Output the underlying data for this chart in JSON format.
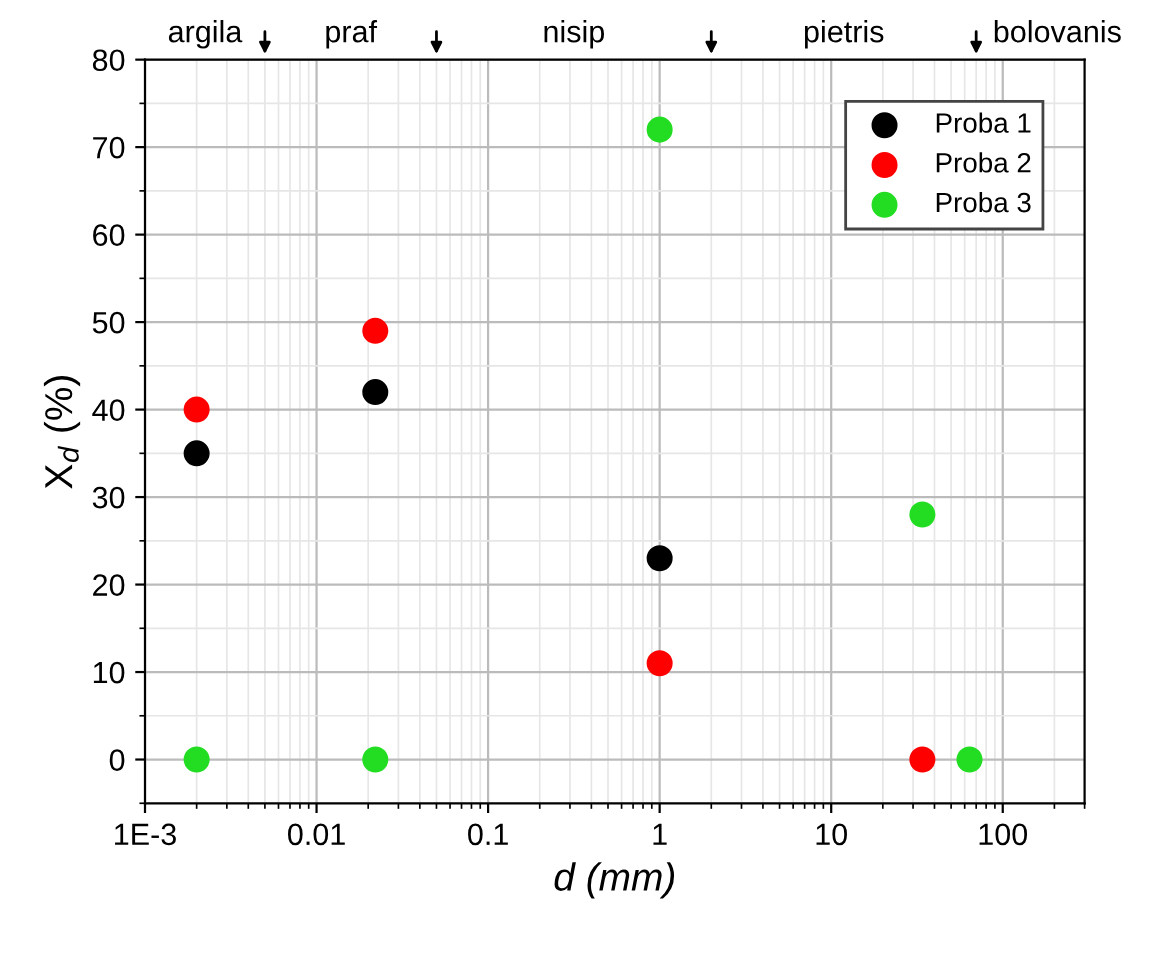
{
  "chart_data": {
    "type": "scatter",
    "xlabel": "d (mm)",
    "ylabel": "X$_{d}$ (%)",
    "log": "x",
    "xlim": [
      0.001,
      300
    ],
    "ylim": [
      -5,
      80
    ],
    "xticks": [
      {
        "value": 0.001,
        "label": "1E-3"
      },
      0.01,
      0.1,
      1,
      10,
      100
    ],
    "yticks": [
      0,
      10,
      20,
      30,
      40,
      50,
      60,
      70,
      80
    ],
    "ref_lines": [
      {
        "axis": "x",
        "value": 0.005
      },
      {
        "axis": "x",
        "value": 0.05
      },
      {
        "axis": "x",
        "value": 2
      },
      {
        "axis": "x",
        "value": 70
      }
    ],
    "annotations": [
      "argila",
      "praf",
      "nisip",
      "pietris",
      "bolovanis"
    ],
    "grid": true,
    "legend": "top right",
    "marker": "circle",
    "series": [
      {
        "name": "Proba 1",
        "color": "#000000",
        "x": [
          0.002,
          0.022,
          1
        ],
        "values": [
          35,
          42,
          23
        ]
      },
      {
        "name": "Proba 2",
        "color": "#ff0000",
        "x": [
          0.002,
          0.022,
          1,
          34
        ],
        "values": [
          40,
          49,
          11,
          0
        ]
      },
      {
        "name": "Proba 3",
        "color": "#22dd22",
        "x": [
          0.002,
          0.022,
          1,
          34,
          64
        ],
        "values": [
          0,
          0,
          72,
          28,
          0
        ]
      }
    ]
  }
}
